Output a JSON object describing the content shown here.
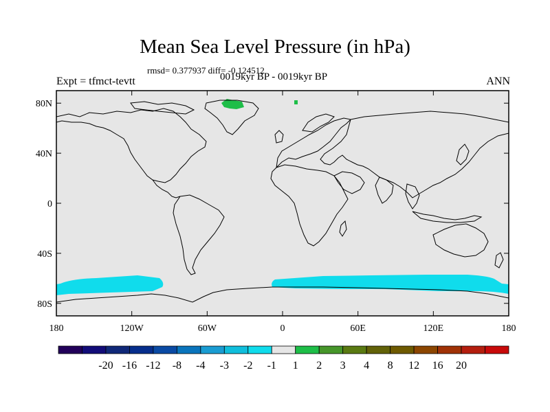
{
  "title": "Mean Sea Level Pressure (in hPa)",
  "rmsd_text": "rmsd= 0.377937 diff= -0.124512",
  "subtitle": "0019kyr BP - 0019kyr BP",
  "expt_label": "Expt = tfmct-tevtt",
  "season_label": "ANN",
  "lat_ticks": [
    {
      "value": 80,
      "label": "80N"
    },
    {
      "value": 40,
      "label": "40N"
    },
    {
      "value": 0,
      "label": "0"
    },
    {
      "value": -40,
      "label": "40S"
    },
    {
      "value": -80,
      "label": "80S"
    }
  ],
  "lon_ticks": [
    {
      "value": -180,
      "label": "180"
    },
    {
      "value": -120,
      "label": "120W"
    },
    {
      "value": -60,
      "label": "60W"
    },
    {
      "value": 0,
      "label": "0"
    },
    {
      "value": 60,
      "label": "60E"
    },
    {
      "value": 120,
      "label": "120E"
    },
    {
      "value": 180,
      "label": "180"
    }
  ],
  "colorbar": {
    "colors": [
      "#22005a",
      "#120c78",
      "#102878",
      "#062e8c",
      "#0a4aa4",
      "#0a74bc",
      "#1a9cd2",
      "#10bedc",
      "#10dcec",
      "#e6e6e6",
      "#1ebe48",
      "#46962a",
      "#5a7a12",
      "#626208",
      "#6e5a00",
      "#8c4600",
      "#a03206",
      "#b41e0e",
      "#c80a0a"
    ],
    "labels": [
      "-20",
      "-16",
      "-12",
      "-8",
      "-4",
      "-3",
      "-2",
      "-1",
      "1",
      "2",
      "3",
      "4",
      "8",
      "12",
      "16",
      "20"
    ]
  },
  "map_colors": {
    "background": "#e6e6e6",
    "negative_anomaly": "#10dcec",
    "positive_anomaly": "#1ebe48",
    "coastline": "#000000"
  }
}
